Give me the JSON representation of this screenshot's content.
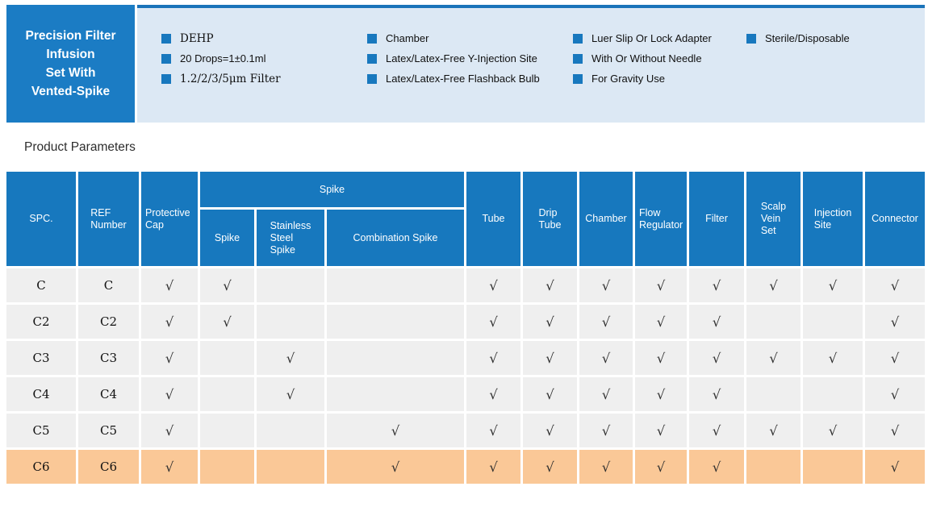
{
  "banner": {
    "title": "Precision Filter\nInfusion\nSet With\nVented-Spike",
    "feature_columns": [
      {
        "items": [
          "DEHP",
          "20 Drops=1±0.1ml",
          "1.2/2/3/5μm Filter"
        ]
      },
      {
        "items": [
          "Chamber",
          "Latex/Latex-Free Y-Injection Site",
          "Latex/Latex-Free Flashback Bulb"
        ]
      },
      {
        "items": [
          "Luer Slip Or Lock Adapter",
          "With Or Without Needle",
          "For Gravity Use"
        ]
      },
      {
        "items": [
          "Sterile/Disposable"
        ]
      }
    ]
  },
  "section_title": "Product Parameters",
  "table": {
    "column_headers": {
      "spc": "SPC.",
      "ref": "REF\nNumber",
      "protective_cap": "Protective\nCap",
      "spike_group": "Spike",
      "spike": "Spike",
      "stainless_steel_spike": "Stainless\nSteel\nSpike",
      "combination_spike": "Combination Spike",
      "tube": "Tube",
      "drip_tube": "Drip\nTube",
      "chamber": "Chamber",
      "flow_regulator": "Flow\nRegulator",
      "filter": "Filter",
      "scalp_vein_set": "Scalp\nVein\nSet",
      "injection_site": "Injection\nSite",
      "connector": "Connector"
    },
    "check_symbol": "√",
    "check_columns_order": [
      "protective_cap",
      "spike",
      "stainless_steel_spike",
      "combination_spike",
      "tube",
      "drip_tube",
      "chamber",
      "flow_regulator",
      "filter",
      "scalp_vein_set",
      "injection_site",
      "connector"
    ],
    "rows": [
      {
        "spc": "C",
        "ref": "C",
        "highlighted": false,
        "checks": [
          "√",
          "√",
          "",
          "",
          "√",
          "√",
          "√",
          "√",
          "√",
          "√",
          "√",
          "√"
        ]
      },
      {
        "spc": "C2",
        "ref": "C2",
        "highlighted": false,
        "checks": [
          "√",
          "√",
          "",
          "",
          "√",
          "√",
          "√",
          "√",
          "√",
          "",
          "",
          "√"
        ]
      },
      {
        "spc": "C3",
        "ref": "C3",
        "highlighted": false,
        "checks": [
          "√",
          "",
          "√",
          "",
          "√",
          "√",
          "√",
          "√",
          "√",
          "√",
          "√",
          "√"
        ]
      },
      {
        "spc": "C4",
        "ref": "C4",
        "highlighted": false,
        "checks": [
          "√",
          "",
          "√",
          "",
          "√",
          "√",
          "√",
          "√",
          "√",
          "",
          "",
          "√"
        ]
      },
      {
        "spc": "C5",
        "ref": "C5",
        "highlighted": false,
        "checks": [
          "√",
          "",
          "",
          "√",
          "√",
          "√",
          "√",
          "√",
          "√",
          "√",
          "√",
          "√"
        ]
      },
      {
        "spc": "C6",
        "ref": "C6",
        "highlighted": true,
        "checks": [
          "√",
          "",
          "",
          "√",
          "√",
          "√",
          "√",
          "√",
          "√",
          "",
          "",
          "√"
        ]
      }
    ]
  },
  "colors": {
    "banner_box_blue": "#1b7cc4",
    "band_background": "#dce8f4",
    "band_top_border": "#1a73b9",
    "table_header_blue": "#1778be",
    "row_gray": "#efefef",
    "highlight_orange": "#fac897",
    "bullet_blue": "#1878be"
  }
}
